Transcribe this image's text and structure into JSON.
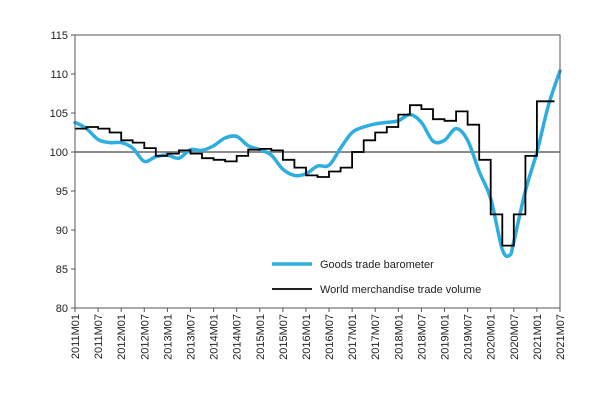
{
  "chart_data": {
    "type": "line",
    "title": "",
    "xlabel": "",
    "ylabel": "",
    "ylim": [
      80,
      115
    ],
    "yticks": [
      80,
      85,
      90,
      95,
      100,
      105,
      110,
      115
    ],
    "ytick_labels": [
      "80",
      "85",
      "90",
      "95",
      "100",
      "105",
      "110",
      "115"
    ],
    "x_start": "2011M01",
    "x_end": "2021M07",
    "xtick_labels": [
      "2011M01",
      "2011M07",
      "2012M01",
      "2012M07",
      "2013M01",
      "2013M07",
      "2014M01",
      "2014M07",
      "2015M01",
      "2015M07",
      "2016M01",
      "2016M07",
      "2017M01",
      "2017M07",
      "2018M01",
      "2018M07",
      "2019M01",
      "2019M07",
      "2020M01",
      "2020M07",
      "2021M01",
      "2021M07"
    ],
    "reference_line": 100,
    "grid": false,
    "legend_position": "bottom-right",
    "series": [
      {
        "name": "Goods trade barometer",
        "color": "#2eaee0",
        "points": [
          [
            "2011M01",
            103.8
          ],
          [
            "2011M04",
            103.0
          ],
          [
            "2011M07",
            101.6
          ],
          [
            "2011M10",
            101.2
          ],
          [
            "2012M01",
            101.2
          ],
          [
            "2012M04",
            100.5
          ],
          [
            "2012M07",
            98.8
          ],
          [
            "2012M10",
            99.4
          ],
          [
            "2013M01",
            99.6
          ],
          [
            "2013M04",
            99.2
          ],
          [
            "2013M07",
            100.3
          ],
          [
            "2013M10",
            100.2
          ],
          [
            "2014M01",
            100.8
          ],
          [
            "2014M04",
            101.8
          ],
          [
            "2014M07",
            102.0
          ],
          [
            "2014M10",
            100.8
          ],
          [
            "2015M01",
            100.3
          ],
          [
            "2015M04",
            99.6
          ],
          [
            "2015M07",
            97.8
          ],
          [
            "2015M10",
            97.0
          ],
          [
            "2016M01",
            97.2
          ],
          [
            "2016M04",
            98.2
          ],
          [
            "2016M07",
            98.3
          ],
          [
            "2016M10",
            100.5
          ],
          [
            "2017M01",
            102.5
          ],
          [
            "2017M04",
            103.2
          ],
          [
            "2017M07",
            103.6
          ],
          [
            "2017M10",
            103.8
          ],
          [
            "2018M01",
            104.0
          ],
          [
            "2018M04",
            104.8
          ],
          [
            "2018M07",
            103.8
          ],
          [
            "2018M10",
            101.4
          ],
          [
            "2019M01",
            101.5
          ],
          [
            "2019M04",
            103.0
          ],
          [
            "2019M07",
            101.5
          ],
          [
            "2019M10",
            97.5
          ],
          [
            "2020M01",
            94.0
          ],
          [
            "2020M04",
            87.5
          ],
          [
            "2020M06",
            86.8
          ],
          [
            "2020M07",
            88.5
          ],
          [
            "2020M10",
            95.0
          ],
          [
            "2021M01",
            100.0
          ],
          [
            "2021M04",
            106.0
          ],
          [
            "2021M07",
            110.4
          ]
        ]
      },
      {
        "name": "World merchandise trade volume",
        "color": "#000000",
        "points": [
          [
            "2011M01",
            103.0
          ],
          [
            "2011M04",
            103.2
          ],
          [
            "2011M07",
            103.0
          ],
          [
            "2011M10",
            102.5
          ],
          [
            "2012M01",
            101.5
          ],
          [
            "2012M04",
            101.2
          ],
          [
            "2012M07",
            100.5
          ],
          [
            "2012M10",
            99.5
          ],
          [
            "2013M01",
            99.8
          ],
          [
            "2013M04",
            100.2
          ],
          [
            "2013M07",
            99.8
          ],
          [
            "2013M10",
            99.2
          ],
          [
            "2014M01",
            99.0
          ],
          [
            "2014M04",
            98.8
          ],
          [
            "2014M07",
            99.5
          ],
          [
            "2014M10",
            100.3
          ],
          [
            "2015M01",
            100.4
          ],
          [
            "2015M04",
            100.2
          ],
          [
            "2015M07",
            99.0
          ],
          [
            "2015M10",
            98.0
          ],
          [
            "2016M01",
            97.0
          ],
          [
            "2016M04",
            96.8
          ],
          [
            "2016M07",
            97.5
          ],
          [
            "2016M10",
            98.0
          ],
          [
            "2017M01",
            100.0
          ],
          [
            "2017M04",
            101.5
          ],
          [
            "2017M07",
            102.5
          ],
          [
            "2017M10",
            103.2
          ],
          [
            "2018M01",
            104.8
          ],
          [
            "2018M04",
            106.0
          ],
          [
            "2018M07",
            105.5
          ],
          [
            "2018M10",
            104.2
          ],
          [
            "2019M01",
            104.0
          ],
          [
            "2019M04",
            105.2
          ],
          [
            "2019M07",
            103.5
          ],
          [
            "2019M10",
            99.0
          ],
          [
            "2020M01",
            92.0
          ],
          [
            "2020M04",
            88.0
          ],
          [
            "2020M07",
            92.0
          ],
          [
            "2020M10",
            99.5
          ],
          [
            "2021M01",
            106.5
          ],
          [
            "2021M04",
            106.5
          ]
        ]
      }
    ]
  }
}
